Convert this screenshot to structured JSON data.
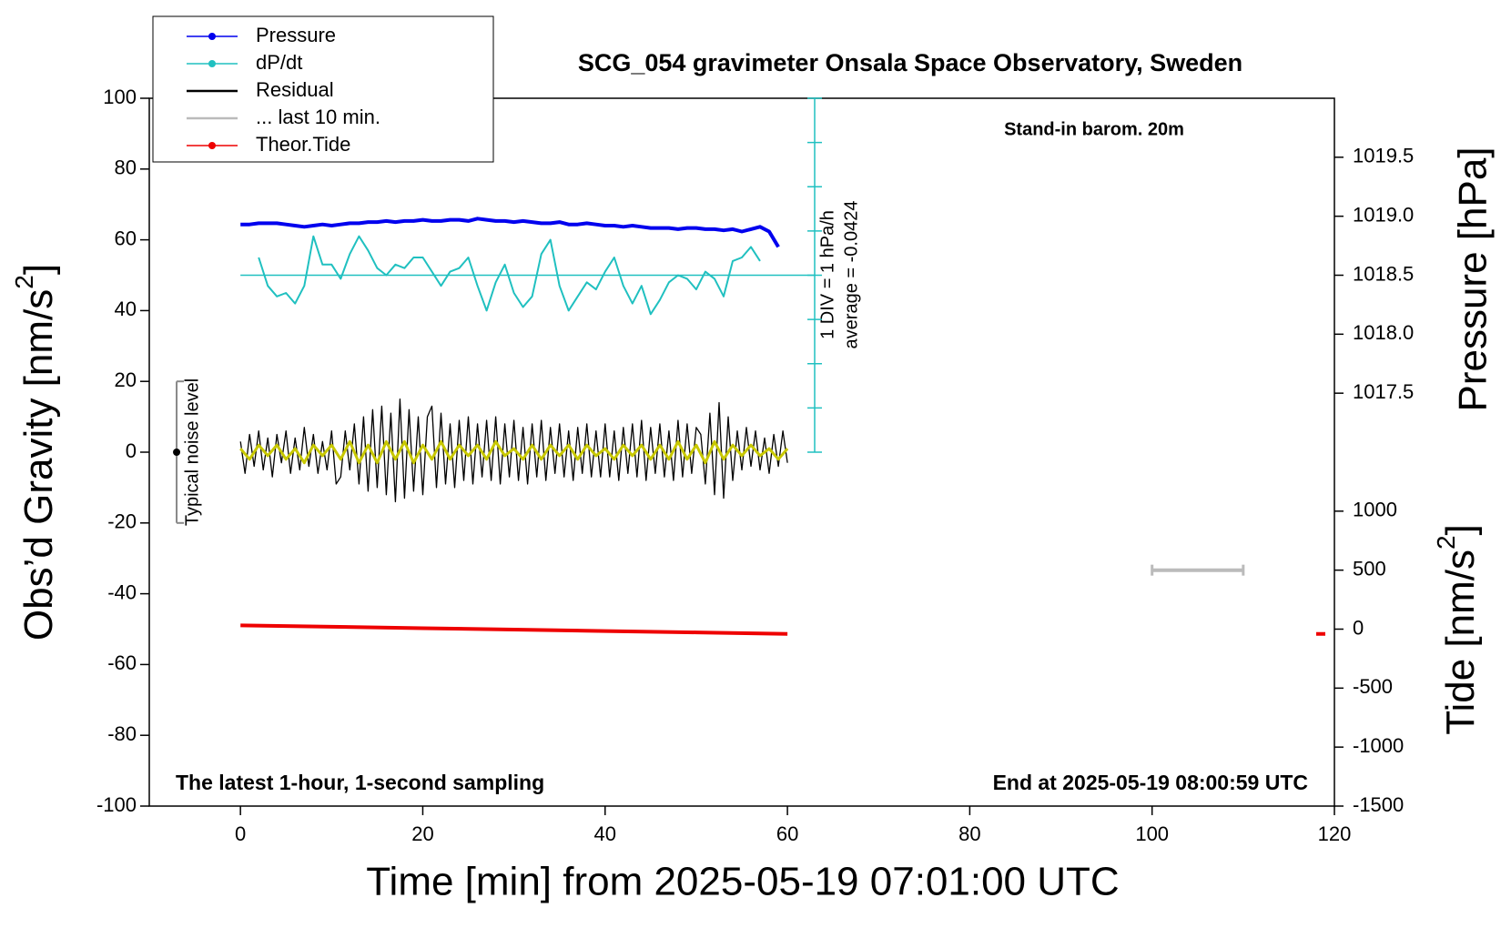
{
  "chart_data": {
    "type": "line",
    "title": "SCG_054 gravimeter Onsala Space Observatory, Sweden",
    "subtitle": "Stand-in barom. 20m",
    "note_left": "The latest 1-hour, 1-second sampling",
    "note_right": "End at 2025-05-19 08:00:59 UTC",
    "dpdt_scale": "1 DIV = 1 hPa/h",
    "dpdt_average": "average = -0.0424",
    "x_label": "Time [min] from 2025-05-19 07:01:00 UTC",
    "y_label": [
      "Obs’d Gravity [nm/s",
      "2",
      "]"
    ],
    "y2_label": "Pressure [hPa]",
    "y3_label": [
      "Tide [nm/s",
      "2",
      "]"
    ],
    "xlim": [
      -10,
      120
    ],
    "xticks": [
      0,
      20,
      40,
      60,
      80,
      100,
      120
    ],
    "ylim": [
      -100,
      100
    ],
    "yticks": [
      -100,
      -80,
      -60,
      -40,
      -20,
      0,
      20,
      40,
      60,
      80,
      100
    ],
    "y2lim": [
      1014,
      1020
    ],
    "y2ticks": [
      1017.5,
      {
        "value": 1018,
        "label": "1018.0"
      },
      1018.5,
      {
        "value": 1019,
        "label": "1019.0"
      },
      1019.5
    ],
    "y3lim": [
      -1500,
      4500
    ],
    "y3ticks": [
      -1500,
      -1000,
      -500,
      0,
      500,
      1000
    ],
    "noise_level": {
      "label": "Typical noise level",
      "x": -7,
      "low": -20,
      "mid": 0,
      "high": 20
    },
    "series": [
      {
        "name": "Pressure",
        "color": "#0000ee",
        "width": 4,
        "marker": "dot",
        "axis": "y2",
        "x": [
          0,
          1,
          2,
          3,
          4,
          5,
          6,
          7,
          8,
          9,
          10,
          11,
          12,
          13,
          14,
          15,
          16,
          17,
          18,
          19,
          20,
          21,
          22,
          23,
          24,
          25,
          26,
          27,
          28,
          29,
          30,
          31,
          32,
          33,
          34,
          35,
          36,
          37,
          38,
          39,
          40,
          41,
          42,
          43,
          44,
          45,
          46,
          47,
          48,
          49,
          50,
          51,
          52,
          53,
          54,
          55,
          56,
          57,
          58,
          59
        ],
        "values": [
          1018.93,
          1018.93,
          1018.94,
          1018.94,
          1018.94,
          1018.93,
          1018.92,
          1018.91,
          1018.92,
          1018.93,
          1018.92,
          1018.93,
          1018.94,
          1018.94,
          1018.95,
          1018.95,
          1018.96,
          1018.95,
          1018.96,
          1018.96,
          1018.97,
          1018.96,
          1018.96,
          1018.97,
          1018.97,
          1018.96,
          1018.98,
          1018.97,
          1018.96,
          1018.96,
          1018.95,
          1018.96,
          1018.95,
          1018.94,
          1018.94,
          1018.95,
          1018.93,
          1018.93,
          1018.94,
          1018.93,
          1018.92,
          1018.92,
          1018.91,
          1018.92,
          1018.91,
          1018.9,
          1018.9,
          1018.9,
          1018.89,
          1018.9,
          1018.9,
          1018.89,
          1018.89,
          1018.88,
          1018.89,
          1018.87,
          1018.89,
          1018.91,
          1018.87,
          1018.74
        ]
      },
      {
        "name": "dP/dt",
        "color": "#20c0c0",
        "width": 2,
        "marker": "dot",
        "baseline": 50,
        "x": [
          2,
          3,
          4,
          5,
          6,
          7,
          8,
          9,
          10,
          11,
          12,
          13,
          14,
          15,
          16,
          17,
          18,
          19,
          20,
          21,
          22,
          23,
          24,
          25,
          26,
          27,
          28,
          29,
          30,
          31,
          32,
          33,
          34,
          35,
          36,
          37,
          38,
          39,
          40,
          41,
          42,
          43,
          44,
          45,
          46,
          47,
          48,
          49,
          50,
          51,
          52,
          53,
          54,
          55,
          56,
          57
        ],
        "values": [
          55,
          47,
          44,
          45,
          42,
          47,
          61,
          53,
          53,
          49,
          56,
          61,
          57,
          52,
          50,
          53,
          52,
          55,
          55,
          51,
          47,
          51,
          52,
          55,
          47,
          40,
          48,
          53,
          45,
          41,
          44,
          56,
          60,
          47,
          40,
          44,
          48,
          46,
          51,
          55,
          47,
          42,
          47,
          39,
          43,
          48,
          50,
          49,
          46,
          51,
          49,
          44,
          54,
          55,
          58,
          54
        ]
      },
      {
        "name": "Residual",
        "color": "#000000",
        "width": 1.3,
        "x": [
          0,
          0.5,
          1,
          1.5,
          2,
          2.5,
          3,
          3.5,
          4,
          4.5,
          5,
          5.5,
          6,
          6.5,
          7,
          7.5,
          8,
          8.5,
          9,
          9.5,
          10,
          10.5,
          11,
          11.5,
          12,
          12.5,
          13,
          13.5,
          14,
          14.5,
          15,
          15.5,
          16,
          16.5,
          17,
          17.5,
          18,
          18.5,
          19,
          19.5,
          20,
          20.5,
          21,
          21.5,
          22,
          22.5,
          23,
          23.5,
          24,
          24.5,
          25,
          25.5,
          26,
          26.5,
          27,
          27.5,
          28,
          28.5,
          29,
          29.5,
          30,
          30.5,
          31,
          31.5,
          32,
          32.5,
          33,
          33.5,
          34,
          34.5,
          35,
          35.5,
          36,
          36.5,
          37,
          37.5,
          38,
          38.5,
          39,
          39.5,
          40,
          40.5,
          41,
          41.5,
          42,
          42.5,
          43,
          43.5,
          44,
          44.5,
          45,
          45.5,
          46,
          46.5,
          47,
          47.5,
          48,
          48.5,
          49,
          49.5,
          50,
          50.5,
          51,
          51.5,
          52,
          52.5,
          53,
          53.5,
          54,
          54.5,
          55,
          55.5,
          56,
          56.5,
          57,
          57.5,
          58,
          58.5,
          59,
          59.5,
          60
        ],
        "values": [
          3,
          -6,
          5,
          -4,
          6,
          -5,
          4,
          -7,
          5,
          -3,
          6,
          -6,
          4,
          -5,
          7,
          -4,
          5,
          -6,
          3,
          -5,
          6,
          -9,
          -7,
          6,
          -5,
          8,
          -9,
          10,
          -11,
          12,
          -10,
          13,
          -12,
          11,
          -14,
          15,
          -13,
          12,
          -11,
          10,
          -12,
          10,
          13,
          -10,
          11,
          -9,
          8,
          -10,
          9,
          -8,
          10,
          -9,
          8,
          -7,
          9,
          -8,
          10,
          -9,
          8,
          -7,
          9,
          -8,
          7,
          -9,
          8,
          -7,
          9,
          -8,
          7,
          -6,
          8,
          -7,
          6,
          -8,
          7,
          -6,
          8,
          -7,
          6,
          -7,
          8,
          -7,
          6,
          -8,
          7,
          -6,
          8,
          -7,
          9,
          -8,
          7,
          -6,
          8,
          -7,
          6,
          -8,
          9,
          -7,
          8,
          -6,
          7,
          5,
          -9,
          11,
          -12,
          14,
          -13,
          10,
          -8,
          6,
          -5,
          7,
          -4,
          6,
          -5,
          4,
          -6,
          5,
          -4,
          6,
          -3
        ]
      },
      {
        "color": "#c8c800",
        "width": 3,
        "x": [
          0,
          1,
          2,
          3,
          4,
          5,
          6,
          7,
          8,
          9,
          10,
          11,
          12,
          13,
          14,
          15,
          16,
          17,
          18,
          19,
          20,
          21,
          22,
          23,
          24,
          25,
          26,
          27,
          28,
          29,
          30,
          31,
          32,
          33,
          34,
          35,
          36,
          37,
          38,
          39,
          40,
          41,
          42,
          43,
          44,
          45,
          46,
          47,
          48,
          49,
          50,
          51,
          52,
          53,
          54,
          55,
          56,
          57,
          58,
          59,
          60
        ],
        "values": [
          1,
          -2,
          2,
          -1,
          2,
          -2,
          1,
          -3,
          2,
          -1,
          2,
          -2,
          3,
          -3,
          2,
          -3,
          3,
          -2,
          3,
          -3,
          2,
          -2,
          3,
          -2,
          2,
          -1,
          2,
          -2,
          3,
          -1,
          1,
          -2,
          2,
          -2,
          2,
          -1,
          2,
          -2,
          2,
          -1,
          1,
          -2,
          2,
          -1,
          2,
          -2,
          2,
          -2,
          3,
          -2,
          2,
          -3,
          3,
          -2,
          2,
          -1,
          2,
          -1,
          1,
          -2,
          1
        ]
      },
      {
        "name": "... last 10 min.",
        "color": "#bbbbbb",
        "width": 4,
        "axis": "y3",
        "x": [
          100,
          110
        ],
        "values": [
          500,
          500
        ]
      },
      {
        "name": "Theor.Tide",
        "color": "#ee0000",
        "width": 4,
        "marker": "dot",
        "axis": "y3",
        "x": [
          0,
          10,
          20,
          30,
          40,
          50,
          60,
          90,
          118,
          119
        ],
        "values": [
          32,
          20,
          8,
          -4,
          -16,
          -28,
          -40,
          null,
          -40,
          -40
        ]
      }
    ]
  }
}
